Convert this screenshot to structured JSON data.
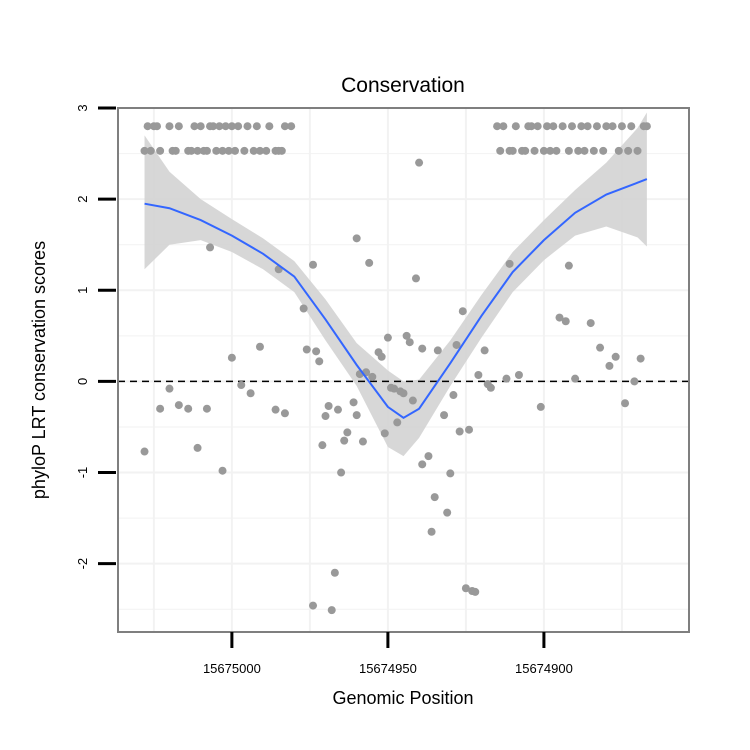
{
  "chart_data": {
    "type": "scatter",
    "title": "Conservation",
    "xlabel": "Genomic Position",
    "ylabel": "phyloP LRT conservation scores",
    "x_reversed": true,
    "xlim": [
      15675036.5,
      15674853.5
    ],
    "ylim": [
      -2.75,
      3.0
    ],
    "x_ticks": [
      15675000,
      15674950,
      15674900
    ],
    "x_tick_labels": [
      "15675000",
      "15674950",
      "15674900"
    ],
    "y_ticks": [
      -2,
      -1,
      0,
      1,
      2,
      3
    ],
    "y_tick_labels": [
      "-2",
      "-1",
      "0",
      "1",
      "2",
      "3"
    ],
    "reference_line": {
      "y": 0,
      "style": "dashed"
    },
    "points": [
      {
        "x": 15675028,
        "y": 2.53
      },
      {
        "x": 15675027,
        "y": 2.8
      },
      {
        "x": 15675026,
        "y": 2.53
      },
      {
        "x": 15675025,
        "y": 2.8
      },
      {
        "x": 15675024,
        "y": 2.8
      },
      {
        "x": 15675023,
        "y": 2.53
      },
      {
        "x": 15675020,
        "y": 2.8
      },
      {
        "x": 15675019,
        "y": 2.53
      },
      {
        "x": 15675018,
        "y": 2.53
      },
      {
        "x": 15675017,
        "y": 2.8
      },
      {
        "x": 15675014,
        "y": 2.53
      },
      {
        "x": 15675013,
        "y": 2.53
      },
      {
        "x": 15675012,
        "y": 2.8
      },
      {
        "x": 15675011,
        "y": 2.53
      },
      {
        "x": 15675010,
        "y": 2.8
      },
      {
        "x": 15675009,
        "y": 2.53
      },
      {
        "x": 15675008,
        "y": 2.53
      },
      {
        "x": 15675007,
        "y": 2.8
      },
      {
        "x": 15675006,
        "y": 2.8
      },
      {
        "x": 15675005,
        "y": 2.53
      },
      {
        "x": 15675004,
        "y": 2.8
      },
      {
        "x": 15675003,
        "y": 2.53
      },
      {
        "x": 15675002,
        "y": 2.8
      },
      {
        "x": 15675001,
        "y": 2.53
      },
      {
        "x": 15675000,
        "y": 2.8
      },
      {
        "x": 15674999,
        "y": 2.53
      },
      {
        "x": 15674998,
        "y": 2.8
      },
      {
        "x": 15674996,
        "y": 2.53
      },
      {
        "x": 15674995,
        "y": 2.8
      },
      {
        "x": 15674993,
        "y": 2.53
      },
      {
        "x": 15674992,
        "y": 2.8
      },
      {
        "x": 15674991,
        "y": 2.53
      },
      {
        "x": 15674989,
        "y": 2.53
      },
      {
        "x": 15674988,
        "y": 2.8
      },
      {
        "x": 15674986,
        "y": 2.53
      },
      {
        "x": 15674985,
        "y": 2.53
      },
      {
        "x": 15674984,
        "y": 2.53
      },
      {
        "x": 15674983,
        "y": 2.8
      },
      {
        "x": 15674981,
        "y": 2.8
      },
      {
        "x": 15675028,
        "y": -0.77
      },
      {
        "x": 15675023,
        "y": -0.3
      },
      {
        "x": 15675020,
        "y": -0.08
      },
      {
        "x": 15675017,
        "y": -0.26
      },
      {
        "x": 15675014,
        "y": -0.3
      },
      {
        "x": 15675011,
        "y": -0.73
      },
      {
        "x": 15675008,
        "y": -0.3
      },
      {
        "x": 15675007,
        "y": 1.47
      },
      {
        "x": 15675003,
        "y": -0.98
      },
      {
        "x": 15675000,
        "y": 0.26
      },
      {
        "x": 15674997,
        "y": -0.04
      },
      {
        "x": 15674994,
        "y": -0.13
      },
      {
        "x": 15674991,
        "y": 0.38
      },
      {
        "x": 15674986,
        "y": -0.31
      },
      {
        "x": 15674985,
        "y": 1.23
      },
      {
        "x": 15674983,
        "y": -0.35
      },
      {
        "x": 15674977,
        "y": 0.8
      },
      {
        "x": 15674976,
        "y": 0.35
      },
      {
        "x": 15674974,
        "y": 1.28
      },
      {
        "x": 15674974,
        "y": -2.46
      },
      {
        "x": 15674973,
        "y": 0.33
      },
      {
        "x": 15674972,
        "y": 0.22
      },
      {
        "x": 15674971,
        "y": -0.7
      },
      {
        "x": 15674970,
        "y": -0.38
      },
      {
        "x": 15674969,
        "y": -0.27
      },
      {
        "x": 15674968,
        "y": -2.51
      },
      {
        "x": 15674967,
        "y": -2.1
      },
      {
        "x": 15674966,
        "y": -0.31
      },
      {
        "x": 15674965,
        "y": -1.0
      },
      {
        "x": 15674964,
        "y": -0.65
      },
      {
        "x": 15674963,
        "y": -0.56
      },
      {
        "x": 15674961,
        "y": -0.23
      },
      {
        "x": 15674960,
        "y": -0.37
      },
      {
        "x": 15674960,
        "y": 1.57
      },
      {
        "x": 15674959,
        "y": 0.08
      },
      {
        "x": 15674958,
        "y": -0.66
      },
      {
        "x": 15674957,
        "y": 0.1
      },
      {
        "x": 15674956,
        "y": 1.3
      },
      {
        "x": 15674955,
        "y": 0.05
      },
      {
        "x": 15674953,
        "y": 0.32
      },
      {
        "x": 15674952,
        "y": 0.27
      },
      {
        "x": 15674951,
        "y": -0.57
      },
      {
        "x": 15674950,
        "y": 0.48
      },
      {
        "x": 15674949,
        "y": -0.07
      },
      {
        "x": 15674948,
        "y": -0.08
      },
      {
        "x": 15674947,
        "y": -0.45
      },
      {
        "x": 15674946,
        "y": -0.11
      },
      {
        "x": 15674945,
        "y": -0.13
      },
      {
        "x": 15674944,
        "y": 0.5
      },
      {
        "x": 15674943,
        "y": 0.43
      },
      {
        "x": 15674942,
        "y": -0.21
      },
      {
        "x": 15674941,
        "y": 1.13
      },
      {
        "x": 15674940,
        "y": 2.4
      },
      {
        "x": 15674939,
        "y": -0.91
      },
      {
        "x": 15674939,
        "y": 0.36
      },
      {
        "x": 15674937,
        "y": -0.82
      },
      {
        "x": 15674936,
        "y": -1.65
      },
      {
        "x": 15674935,
        "y": -1.27
      },
      {
        "x": 15674934,
        "y": 0.34
      },
      {
        "x": 15674932,
        "y": -0.37
      },
      {
        "x": 15674931,
        "y": -1.44
      },
      {
        "x": 15674930,
        "y": -1.01
      },
      {
        "x": 15674929,
        "y": -0.15
      },
      {
        "x": 15674928,
        "y": 0.4
      },
      {
        "x": 15674927,
        "y": -0.55
      },
      {
        "x": 15674926,
        "y": 0.77
      },
      {
        "x": 15674925,
        "y": -2.27
      },
      {
        "x": 15674924,
        "y": -0.53
      },
      {
        "x": 15674923,
        "y": -2.3
      },
      {
        "x": 15674922,
        "y": -2.31
      },
      {
        "x": 15674921,
        "y": 0.07
      },
      {
        "x": 15674919,
        "y": 0.34
      },
      {
        "x": 15674918,
        "y": -0.03
      },
      {
        "x": 15674917,
        "y": -0.07
      },
      {
        "x": 15674915,
        "y": 2.8
      },
      {
        "x": 15674914,
        "y": 2.53
      },
      {
        "x": 15674913,
        "y": 2.8
      },
      {
        "x": 15674912,
        "y": 0.03
      },
      {
        "x": 15674911,
        "y": 1.29
      },
      {
        "x": 15674911,
        "y": 2.53
      },
      {
        "x": 15674910,
        "y": 2.53
      },
      {
        "x": 15674909,
        "y": 2.8
      },
      {
        "x": 15674908,
        "y": 0.07
      },
      {
        "x": 15674907,
        "y": 2.53
      },
      {
        "x": 15674906,
        "y": 2.53
      },
      {
        "x": 15674905,
        "y": 2.8
      },
      {
        "x": 15674904,
        "y": 2.8
      },
      {
        "x": 15674903,
        "y": 2.53
      },
      {
        "x": 15674902,
        "y": 2.8
      },
      {
        "x": 15674901,
        "y": -0.28
      },
      {
        "x": 15674900,
        "y": 2.53
      },
      {
        "x": 15674899,
        "y": 2.8
      },
      {
        "x": 15674898,
        "y": 2.53
      },
      {
        "x": 15674897,
        "y": 2.8
      },
      {
        "x": 15674896,
        "y": 2.53
      },
      {
        "x": 15674895,
        "y": 0.7
      },
      {
        "x": 15674894,
        "y": 2.8
      },
      {
        "x": 15674893,
        "y": 0.66
      },
      {
        "x": 15674892,
        "y": 1.27
      },
      {
        "x": 15674892,
        "y": 2.53
      },
      {
        "x": 15674891,
        "y": 2.8
      },
      {
        "x": 15674890,
        "y": 0.03
      },
      {
        "x": 15674889,
        "y": 2.53
      },
      {
        "x": 15674888,
        "y": 2.8
      },
      {
        "x": 15674887,
        "y": 2.53
      },
      {
        "x": 15674886,
        "y": 2.8
      },
      {
        "x": 15674885,
        "y": 0.64
      },
      {
        "x": 15674884,
        "y": 2.53
      },
      {
        "x": 15674883,
        "y": 2.8
      },
      {
        "x": 15674882,
        "y": 0.37
      },
      {
        "x": 15674881,
        "y": 2.53
      },
      {
        "x": 15674880,
        "y": 2.8
      },
      {
        "x": 15674879,
        "y": 0.17
      },
      {
        "x": 15674878,
        "y": 2.8
      },
      {
        "x": 15674877,
        "y": 0.27
      },
      {
        "x": 15674876,
        "y": 2.53
      },
      {
        "x": 15674875,
        "y": 2.8
      },
      {
        "x": 15674874,
        "y": -0.24
      },
      {
        "x": 15674873,
        "y": 2.53
      },
      {
        "x": 15674872,
        "y": 2.8
      },
      {
        "x": 15674871,
        "y": 0.0
      },
      {
        "x": 15674870,
        "y": 2.53
      },
      {
        "x": 15674869,
        "y": 0.25
      },
      {
        "x": 15674868,
        "y": 2.8
      },
      {
        "x": 15674867,
        "y": 2.8
      }
    ],
    "smooth": {
      "method": "loess",
      "x": [
        15675028,
        15675020,
        15675010,
        15675000,
        15674990,
        15674980,
        15674970,
        15674960,
        15674950,
        15674945,
        15674940,
        15674930,
        15674920,
        15674910,
        15674900,
        15674890,
        15674880,
        15674870,
        15674867
      ],
      "y": [
        1.95,
        1.9,
        1.77,
        1.6,
        1.4,
        1.15,
        0.68,
        0.18,
        -0.28,
        -0.4,
        -0.3,
        0.2,
        0.72,
        1.2,
        1.55,
        1.85,
        2.05,
        2.18,
        2.22
      ],
      "lower": [
        1.23,
        1.5,
        1.55,
        1.42,
        1.23,
        0.98,
        0.45,
        -0.05,
        -0.72,
        -0.82,
        -0.62,
        -0.05,
        0.48,
        0.98,
        1.33,
        1.6,
        1.7,
        1.58,
        1.48
      ],
      "upper": [
        2.7,
        2.3,
        2.0,
        1.78,
        1.57,
        1.32,
        0.9,
        0.42,
        0.12,
        0.0,
        0.02,
        0.45,
        0.95,
        1.42,
        1.77,
        2.1,
        2.4,
        2.78,
        2.95
      ]
    },
    "colors": {
      "points": "#999999",
      "line": "#3366ff",
      "ribbon": "#d3d3d3",
      "panel_border": "#7f7f7f",
      "grid": "#f2f2f2"
    }
  }
}
